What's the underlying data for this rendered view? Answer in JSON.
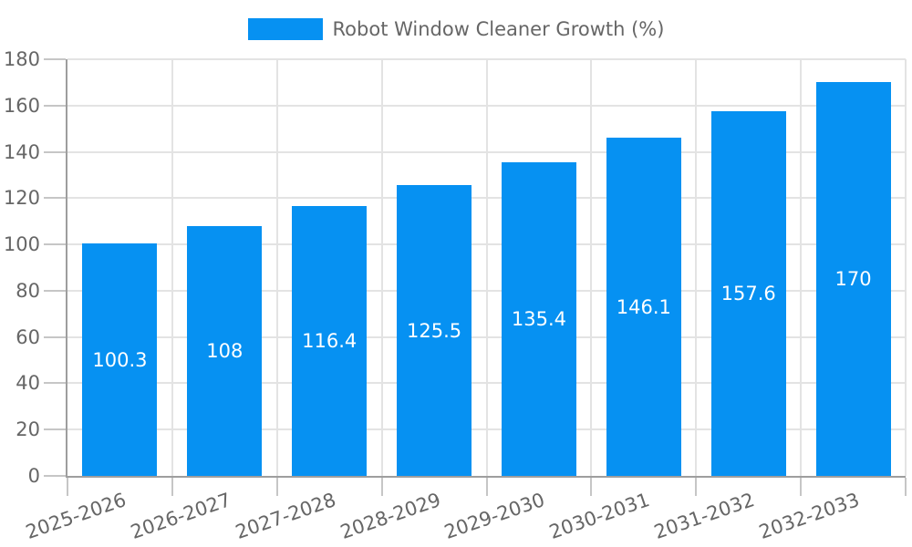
{
  "legend": {
    "label": "Robot Window Cleaner Growth (%)"
  },
  "chart_data": {
    "type": "bar",
    "title": "Robot Window Cleaner Growth (%)",
    "categories": [
      "2025-2026",
      "2026-2027",
      "2027-2028",
      "2028-2029",
      "2029-2030",
      "2030-2031",
      "2031-2032",
      "2032-2033"
    ],
    "values": [
      100.3,
      108,
      116.4,
      125.5,
      135.4,
      146.1,
      157.6,
      170
    ],
    "xlabel": "",
    "ylabel": "",
    "ylim": [
      0,
      180
    ],
    "ytick_step": 20,
    "yticks": [
      0,
      20,
      40,
      60,
      80,
      100,
      120,
      140,
      160,
      180
    ],
    "grid": true,
    "legend_position": "top-center",
    "x_label_rotation_deg": -19,
    "colors": {
      "bar": "#0691F2",
      "value_label": "#FFFFFF",
      "grid": "#E3E3E3",
      "axis": "#9E9E9E",
      "tick": "#C6C6C6",
      "text": "#666666",
      "background": "#FFFFFF"
    }
  }
}
